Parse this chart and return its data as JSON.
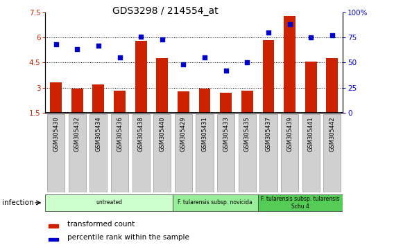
{
  "title": "GDS3298 / 214554_at",
  "samples": [
    "GSM305430",
    "GSM305432",
    "GSM305434",
    "GSM305436",
    "GSM305438",
    "GSM305440",
    "GSM305429",
    "GSM305431",
    "GSM305433",
    "GSM305435",
    "GSM305437",
    "GSM305439",
    "GSM305441",
    "GSM305442"
  ],
  "bar_values": [
    3.3,
    2.95,
    3.2,
    2.82,
    5.8,
    4.75,
    2.78,
    2.93,
    2.7,
    2.82,
    5.85,
    7.3,
    4.55,
    4.75
  ],
  "scatter_values": [
    68,
    63,
    67,
    55,
    76,
    73,
    48,
    55,
    42,
    50,
    80,
    88,
    75,
    77
  ],
  "bar_color": "#cc2200",
  "scatter_color": "#0000cc",
  "ylim_left": [
    1.5,
    7.5
  ],
  "ylim_right": [
    0,
    100
  ],
  "yticks_left": [
    1.5,
    3.0,
    4.5,
    6.0,
    7.5
  ],
  "yticks_right": [
    0,
    25,
    50,
    75,
    100
  ],
  "ytick_labels_left": [
    "1.5",
    "3",
    "4.5",
    "6",
    "7.5"
  ],
  "ytick_labels_right": [
    "0",
    "25",
    "50",
    "75",
    "100%"
  ],
  "hlines": [
    3.0,
    4.5,
    6.0
  ],
  "groups": [
    {
      "label": "untreated",
      "start": 0,
      "end": 6,
      "color": "#ccffcc"
    },
    {
      "label": "F. tularensis subsp. novicida",
      "start": 6,
      "end": 10,
      "color": "#99ee99"
    },
    {
      "label": "F. tularensis subsp. tularensis\nSchu 4",
      "start": 10,
      "end": 14,
      "color": "#55cc55"
    }
  ],
  "infection_label": "infection",
  "legend_bar_label": "transformed count",
  "legend_scatter_label": "percentile rank within the sample",
  "plot_bg": "#ffffff",
  "xtick_bg": "#d0d0d0",
  "bar_width": 0.55
}
